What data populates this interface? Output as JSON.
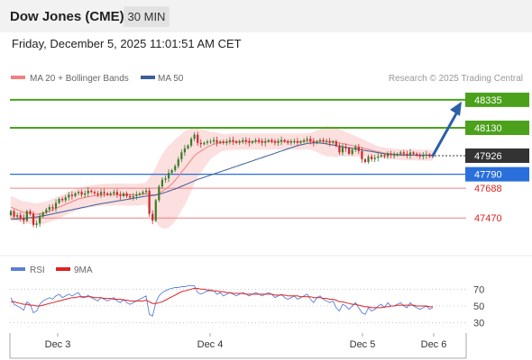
{
  "header": {
    "title": "Dow Jones (CME)",
    "timeframe": "30 MIN"
  },
  "datetime": "Friday, December 5, 2025 11:01:51 AM CET",
  "colors": {
    "up_candle": "#3a7d2c",
    "down_candle": "#cc2a2a",
    "ma20": "#f08080",
    "ma50": "#3a5f9a",
    "band_fill": "#fbd9d9",
    "resistance": "#4ca11c",
    "pivot": "#2a6fdb",
    "support": "#f08080",
    "current": "#333333",
    "arrow": "#2b5fa8",
    "rsi": "#5b7fd6",
    "rsi_ma": "#dd2222"
  },
  "chart_data": [
    {
      "type": "candlestick",
      "legend": [
        "MA 20 + Bollinger Bands",
        "MA 50"
      ],
      "legend_placement": "top-left",
      "watermark": "Research © 2025 Trading Central",
      "ylim": [
        47300,
        48420
      ],
      "x_labels": [
        "Dec 3",
        "Dec 4",
        "Dec 5",
        "Dec 6"
      ],
      "levels": [
        {
          "label": "48335",
          "value": 48335,
          "kind": "resistance"
        },
        {
          "label": "48130",
          "value": 48130,
          "kind": "resistance"
        },
        {
          "label": "47926",
          "value": 47926,
          "kind": "current"
        },
        {
          "label": "47790",
          "value": 47790,
          "kind": "pivot"
        },
        {
          "label": "47688",
          "value": 47688,
          "kind": "support"
        },
        {
          "label": "47470",
          "value": 47470,
          "kind": "support"
        }
      ],
      "closes": [
        47520,
        47480,
        47490,
        47470,
        47450,
        47520,
        47500,
        47420,
        47430,
        47480,
        47510,
        47530,
        47550,
        47540,
        47580,
        47610,
        47600,
        47620,
        47640,
        47630,
        47650,
        47660,
        47640,
        47650,
        47670,
        47660,
        47650,
        47640,
        47660,
        47650,
        47640,
        47650,
        47660,
        47640,
        47630,
        47650,
        47630,
        47620,
        47630,
        47640,
        47650,
        47660,
        47670,
        47500,
        47450,
        47600,
        47700,
        47750,
        47760,
        47800,
        47820,
        47850,
        47900,
        47950,
        47980,
        48000,
        48050,
        48080,
        48020,
        48010,
        48020,
        48030,
        48030,
        48040,
        48020,
        48030,
        48020,
        48030,
        48040,
        48030,
        48020,
        48030,
        48040,
        48030,
        48020,
        48030,
        48040,
        48030,
        48020,
        48030,
        48040,
        48030,
        48020,
        48030,
        48040,
        48030,
        48020,
        48030,
        48030,
        48020,
        48030,
        48040,
        48050,
        48030,
        48020,
        48030,
        48040,
        48030,
        48030,
        48020,
        48030,
        48000,
        47950,
        47990,
        47980,
        47940,
        47970,
        47990,
        47960,
        47900,
        47880,
        47920,
        47900,
        47910,
        47920,
        47930,
        47920,
        47940,
        47930,
        47930,
        47940,
        47950,
        47940,
        47930,
        47950,
        47940,
        47930,
        47920,
        47930,
        47935,
        47920,
        47926
      ],
      "ma20": [
        47550,
        47540,
        47530,
        47520,
        47510,
        47510,
        47505,
        47500,
        47495,
        47500,
        47505,
        47510,
        47520,
        47530,
        47540,
        47550,
        47560,
        47570,
        47580,
        47590,
        47600,
        47610,
        47615,
        47620,
        47625,
        47630,
        47632,
        47635,
        47638,
        47640,
        47640,
        47640,
        47642,
        47642,
        47642,
        47642,
        47640,
        47640,
        47640,
        47640,
        47642,
        47645,
        47648,
        47645,
        47640,
        47640,
        47650,
        47665,
        47680,
        47700,
        47720,
        47745,
        47775,
        47805,
        47835,
        47865,
        47895,
        47925,
        47945,
        47960,
        47975,
        47990,
        48000,
        48010,
        48015,
        48020,
        48022,
        48025,
        48027,
        48028,
        48030,
        48030,
        48030,
        48030,
        48030,
        48030,
        48030,
        48030,
        48030,
        48030,
        48030,
        48030,
        48030,
        48030,
        48030,
        48030,
        48030,
        48030,
        48030,
        48030,
        48030,
        48030,
        48032,
        48032,
        48032,
        48032,
        48032,
        48032,
        48032,
        48030,
        48030,
        48025,
        48020,
        48015,
        48010,
        48005,
        48000,
        47995,
        47990,
        47985,
        47978,
        47972,
        47966,
        47960,
        47955,
        47950,
        47945,
        47942,
        47940,
        47938,
        47936,
        47935,
        47934,
        47933,
        47932,
        47932,
        47931,
        47930,
        47930,
        47930,
        47929,
        47929
      ],
      "ma50": [
        47460,
        47460,
        47462,
        47465,
        47468,
        47470,
        47472,
        47475,
        47478,
        47482,
        47486,
        47490,
        47495,
        47500,
        47505,
        47510,
        47515,
        47520,
        47525,
        47530,
        47535,
        47540,
        47545,
        47550,
        47555,
        47560,
        47565,
        47570,
        47574,
        47578,
        47582,
        47586,
        47590,
        47594,
        47598,
        47602,
        47606,
        47610,
        47614,
        47618,
        47622,
        47626,
        47630,
        47632,
        47634,
        47638,
        47644,
        47650,
        47658,
        47666,
        47674,
        47682,
        47692,
        47702,
        47712,
        47722,
        47732,
        47742,
        47752,
        47760,
        47768,
        47776,
        47784,
        47792,
        47800,
        47808,
        47816,
        47824,
        47832,
        47840,
        47848,
        47856,
        47864,
        47872,
        47880,
        47888,
        47896,
        47904,
        47912,
        47920,
        47928,
        47936,
        47944,
        47952,
        47960,
        47968,
        47976,
        47984,
        47992,
        48000,
        48005,
        48010,
        48015,
        48018,
        48020,
        48020,
        48018,
        48016,
        48012,
        48008,
        48004,
        48000,
        47996,
        47992,
        47988,
        47984,
        47980,
        47976,
        47972,
        47968,
        47964,
        47960,
        47956,
        47952,
        47948,
        47944,
        47940,
        47938,
        47936,
        47934,
        47932,
        47930,
        47930,
        47930,
        47930,
        47930,
        47930,
        47930,
        47930,
        47930,
        47930,
        47930
      ],
      "band_width": [
        80,
        80,
        80,
        80,
        80,
        80,
        80,
        80,
        80,
        80,
        80,
        80,
        80,
        80,
        80,
        80,
        80,
        80,
        80,
        80,
        80,
        80,
        80,
        80,
        80,
        80,
        80,
        80,
        80,
        80,
        80,
        80,
        80,
        80,
        80,
        80,
        80,
        80,
        80,
        80,
        80,
        80,
        80,
        120,
        160,
        200,
        240,
        270,
        290,
        300,
        300,
        300,
        290,
        280,
        270,
        250,
        230,
        200,
        180,
        160,
        140,
        120,
        100,
        90,
        80,
        70,
        60,
        60,
        60,
        60,
        60,
        60,
        60,
        60,
        60,
        60,
        60,
        60,
        60,
        60,
        60,
        60,
        60,
        60,
        60,
        60,
        60,
        60,
        60,
        60,
        60,
        60,
        60,
        60,
        70,
        80,
        90,
        100,
        110,
        110,
        110,
        110,
        100,
        95,
        90,
        85,
        80,
        75,
        70,
        65,
        60,
        55,
        50,
        45,
        40,
        40,
        40,
        40,
        40,
        40,
        40,
        40,
        40,
        40,
        40,
        40,
        40,
        40,
        40,
        40,
        40,
        40
      ]
    },
    {
      "type": "line",
      "legend": [
        "RSI",
        "9MA"
      ],
      "legend_placement": "top-left",
      "ylim": [
        20,
        80
      ],
      "y_ticks": [
        "70",
        "50",
        "30"
      ],
      "rsi": [
        60,
        52,
        50,
        48,
        45,
        55,
        52,
        42,
        44,
        52,
        56,
        58,
        60,
        58,
        62,
        64,
        60,
        62,
        64,
        62,
        64,
        66,
        60,
        60,
        63,
        60,
        58,
        56,
        60,
        58,
        56,
        58,
        60,
        56,
        54,
        58,
        54,
        52,
        54,
        56,
        58,
        60,
        62,
        40,
        38,
        54,
        62,
        66,
        68,
        70,
        71,
        72,
        72,
        73,
        73,
        74,
        74,
        74,
        66,
        64,
        66,
        68,
        68,
        68,
        64,
        66,
        62,
        64,
        66,
        64,
        62,
        64,
        66,
        64,
        62,
        64,
        66,
        64,
        62,
        64,
        66,
        64,
        60,
        62,
        64,
        60,
        58,
        60,
        62,
        58,
        60,
        62,
        64,
        58,
        54,
        60,
        62,
        58,
        56,
        54,
        56,
        48,
        44,
        52,
        50,
        46,
        50,
        54,
        48,
        42,
        40,
        48,
        44,
        46,
        50,
        52,
        48,
        54,
        50,
        50,
        52,
        54,
        50,
        48,
        54,
        50,
        48,
        46,
        48,
        50,
        46,
        48
      ],
      "ma9": [
        55,
        55,
        54,
        53,
        52,
        52,
        51,
        51,
        50,
        50,
        51,
        52,
        53,
        54,
        55,
        56,
        57,
        58,
        59,
        60,
        60,
        61,
        61,
        61,
        61,
        61,
        60,
        60,
        60,
        59,
        59,
        59,
        58,
        58,
        58,
        57,
        57,
        56,
        56,
        56,
        56,
        56,
        57,
        55,
        53,
        53,
        54,
        55,
        57,
        59,
        61,
        63,
        65,
        67,
        68,
        69,
        70,
        71,
        71,
        70,
        70,
        69,
        69,
        68,
        68,
        67,
        67,
        66,
        66,
        65,
        65,
        65,
        65,
        64,
        64,
        64,
        64,
        64,
        64,
        64,
        64,
        64,
        63,
        63,
        63,
        63,
        62,
        62,
        62,
        62,
        61,
        61,
        61,
        61,
        60,
        60,
        60,
        59,
        59,
        58,
        58,
        57,
        55,
        55,
        54,
        53,
        52,
        52,
        51,
        50,
        49,
        49,
        48,
        48,
        48,
        48,
        49,
        49,
        50,
        50,
        51,
        51,
        51,
        51,
        51,
        51,
        50,
        50,
        50,
        50,
        49,
        49
      ]
    }
  ]
}
